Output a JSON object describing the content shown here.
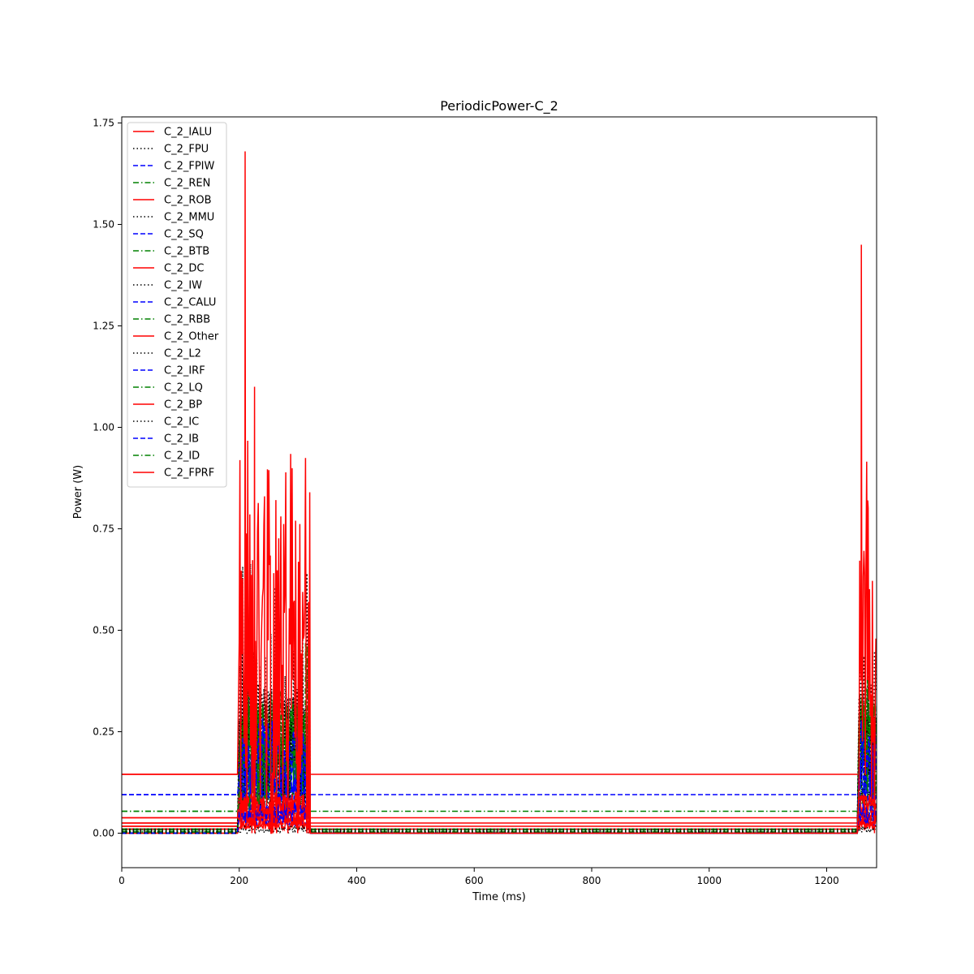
{
  "chart_data": {
    "type": "line",
    "title": "PeriodicPower-C_2",
    "xlabel": "Time (ms)",
    "ylabel": "Power (W)",
    "xlim": [
      0,
      1285
    ],
    "ylim": [
      -0.085,
      1.765
    ],
    "xticks": [
      0,
      200,
      400,
      600,
      800,
      1000,
      1200
    ],
    "yticks": [
      0.0,
      0.25,
      0.5,
      0.75,
      1.0,
      1.25,
      1.5,
      1.75
    ],
    "ytick_labels": [
      "0.00",
      "0.25",
      "0.50",
      "0.75",
      "1.00",
      "1.25",
      "1.50",
      "1.75"
    ],
    "grid": false,
    "legend_position": "upper-left",
    "active_windows": [
      [
        200,
        320
      ],
      [
        1255,
        1285
      ]
    ],
    "series": [
      {
        "name": "C_2_IALU",
        "color": "#ff0000",
        "style": "solid",
        "idle": 0.145,
        "base": 0.2,
        "amp": 0.55,
        "spike": 1.68,
        "seed": 1
      },
      {
        "name": "C_2_FPU",
        "color": "#000000",
        "style": "dotted",
        "idle": 0.0,
        "base": 0.005,
        "amp": 0.01,
        "spike": 0.02,
        "seed": 2
      },
      {
        "name": "C_2_FPIW",
        "color": "#0000ff",
        "style": "dashed",
        "idle": 0.095,
        "base": 0.15,
        "amp": 0.1,
        "spike": 0.28,
        "seed": 3
      },
      {
        "name": "C_2_REN",
        "color": "#008000",
        "style": "dashdot",
        "idle": 0.054,
        "base": 0.15,
        "amp": 0.15,
        "spike": 0.62,
        "seed": 4
      },
      {
        "name": "C_2_ROB",
        "color": "#ff0000",
        "style": "solid",
        "idle": 0.038,
        "base": 0.06,
        "amp": 0.03,
        "spike": 0.12,
        "seed": 5
      },
      {
        "name": "C_2_MMU",
        "color": "#000000",
        "style": "dotted",
        "idle": 0.01,
        "base": 0.15,
        "amp": 0.15,
        "spike": 0.9,
        "seed": 6
      },
      {
        "name": "C_2_SQ",
        "color": "#0000ff",
        "style": "dashed",
        "idle": 0.0,
        "base": 0.04,
        "amp": 0.03,
        "spike": 0.1,
        "seed": 7
      },
      {
        "name": "C_2_BTB",
        "color": "#008000",
        "style": "dashdot",
        "idle": 0.008,
        "base": 0.17,
        "amp": 0.12,
        "spike": 0.6,
        "seed": 8
      },
      {
        "name": "C_2_DC",
        "color": "#ff0000",
        "style": "solid",
        "idle": 0.025,
        "base": 0.05,
        "amp": 0.03,
        "spike": 0.09,
        "seed": 9
      },
      {
        "name": "C_2_IW",
        "color": "#000000",
        "style": "dotted",
        "idle": 0.005,
        "base": 0.2,
        "amp": 0.18,
        "spike": 0.85,
        "seed": 10
      },
      {
        "name": "C_2_CALU",
        "color": "#0000ff",
        "style": "dashed",
        "idle": 0.0,
        "base": 0.12,
        "amp": 0.08,
        "spike": 0.3,
        "seed": 11
      },
      {
        "name": "C_2_RBB",
        "color": "#008000",
        "style": "dashdot",
        "idle": 0.01,
        "base": 0.18,
        "amp": 0.1,
        "spike": 0.4,
        "seed": 12
      },
      {
        "name": "C_2_Other",
        "color": "#ff0000",
        "style": "solid",
        "idle": 0.017,
        "base": 0.03,
        "amp": 0.02,
        "spike": 0.07,
        "seed": 13
      },
      {
        "name": "C_2_L2",
        "color": "#000000",
        "style": "dotted",
        "idle": 0.007,
        "base": 0.2,
        "amp": 0.12,
        "spike": 0.35,
        "seed": 14
      },
      {
        "name": "C_2_IRF",
        "color": "#0000ff",
        "style": "dashed",
        "idle": 0.0,
        "base": 0.08,
        "amp": 0.06,
        "spike": 0.2,
        "seed": 15
      },
      {
        "name": "C_2_LQ",
        "color": "#008000",
        "style": "dashdot",
        "idle": 0.003,
        "base": 0.1,
        "amp": 0.1,
        "spike": 0.3,
        "seed": 16
      },
      {
        "name": "C_2_BP",
        "color": "#ff0000",
        "style": "solid",
        "idle": 0.01,
        "base": 0.02,
        "amp": 0.02,
        "spike": 0.06,
        "seed": 17
      },
      {
        "name": "C_2_IC",
        "color": "#000000",
        "style": "dotted",
        "idle": 0.003,
        "base": 0.06,
        "amp": 0.05,
        "spike": 0.18,
        "seed": 18
      },
      {
        "name": "C_2_IB",
        "color": "#0000ff",
        "style": "dashed",
        "idle": 0.0,
        "base": 0.03,
        "amp": 0.02,
        "spike": 0.08,
        "seed": 19
      },
      {
        "name": "C_2_ID",
        "color": "#008000",
        "style": "dashdot",
        "idle": 0.003,
        "base": 0.07,
        "amp": 0.05,
        "spike": 0.2,
        "seed": 20
      },
      {
        "name": "C_2_FPRF",
        "color": "#ff0000",
        "style": "solid",
        "idle": 0.0,
        "base": 0.015,
        "amp": 0.01,
        "spike": 0.04,
        "seed": 21
      }
    ],
    "peaks": [
      {
        "series": "C_2_IALU",
        "x": 210,
        "y": 1.68
      },
      {
        "series": "C_2_IALU",
        "x": 226,
        "y": 1.1
      },
      {
        "series": "C_2_IALU",
        "x": 243,
        "y": 0.83
      },
      {
        "series": "C_2_IALU",
        "x": 296,
        "y": 0.77
      },
      {
        "series": "C_2_IALU",
        "x": 1259,
        "y": 1.45
      },
      {
        "series": "C_2_IALU",
        "x": 1270,
        "y": 0.82
      }
    ]
  }
}
